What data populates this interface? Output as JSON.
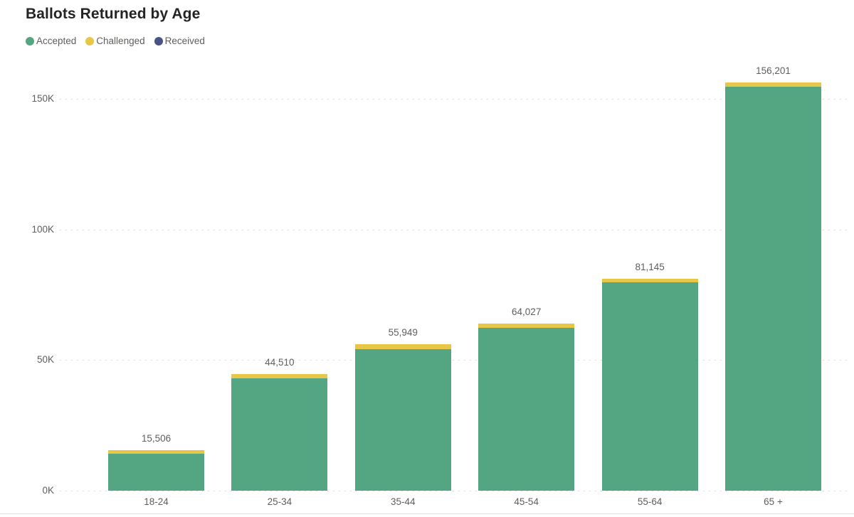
{
  "title": "Ballots Returned by Age",
  "legend": {
    "position": "top-left",
    "items": [
      {
        "label": "Accepted",
        "color": "#54a683"
      },
      {
        "label": "Challenged",
        "color": "#e8c648"
      },
      {
        "label": "Received",
        "color": "#4a5385"
      }
    ]
  },
  "chart_data": {
    "type": "bar",
    "stacked": true,
    "title": "Ballots Returned by Age",
    "xlabel": "",
    "ylabel": "",
    "categories": [
      "18-24",
      "25-34",
      "35-44",
      "45-54",
      "55-64",
      "65 +"
    ],
    "totals": [
      15506,
      44510,
      55949,
      64027,
      81145,
      156201
    ],
    "total_labels": [
      "15,506",
      "44,510",
      "55,949",
      "64,027",
      "81,145",
      "156,201"
    ],
    "series": [
      {
        "name": "Accepted",
        "color": "#54a683",
        "values": [
          14106,
          42910,
          54049,
          62427,
          79645,
          154501
        ],
        "estimated": true
      },
      {
        "name": "Challenged",
        "color": "#e8c648",
        "values": [
          1400,
          1600,
          1900,
          1600,
          1500,
          1700
        ],
        "estimated": true
      },
      {
        "name": "Received",
        "color": "#4a5385",
        "values": [
          15506,
          44510,
          55949,
          64027,
          81145,
          156201
        ],
        "note": "shown only as total data labels"
      }
    ],
    "yticks": [
      {
        "value": 0,
        "label": "0K"
      },
      {
        "value": 50000,
        "label": "50K"
      },
      {
        "value": 100000,
        "label": "100K"
      },
      {
        "value": 150000,
        "label": "150K"
      }
    ],
    "ylim": [
      0,
      150000
    ],
    "grid": "dotted-horizontal",
    "legend_position": "top-left"
  }
}
